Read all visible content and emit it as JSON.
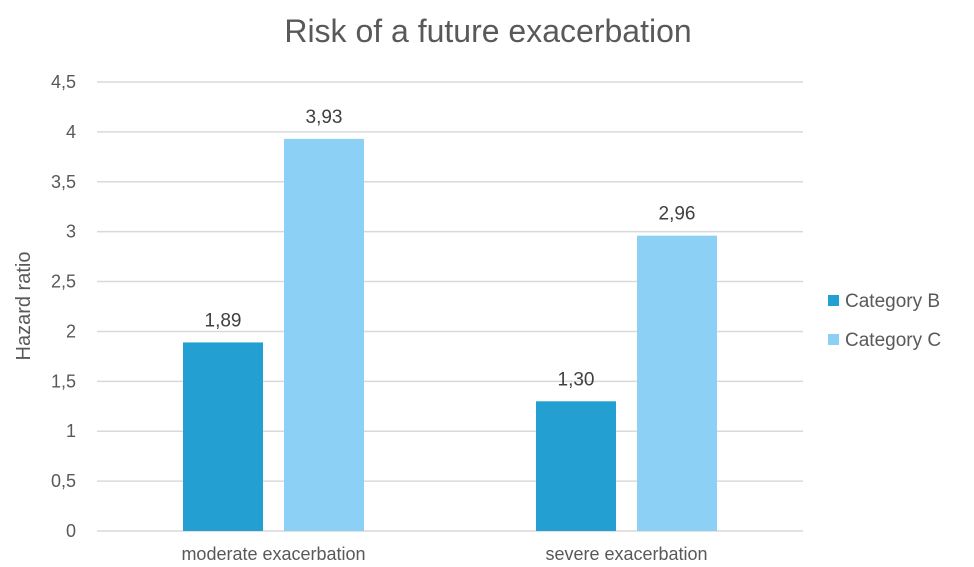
{
  "chart_data": {
    "type": "bar",
    "title": "Risk of a future exacerbation",
    "ylabel": "Hazard ratio",
    "xlabel": "",
    "categories": [
      "moderate exacerbation",
      "severe exacerbation"
    ],
    "series": [
      {
        "name": "Category B",
        "values": [
          1.89,
          1.3
        ],
        "labels": [
          "1,89",
          "1,30"
        ],
        "color": "#239fd1"
      },
      {
        "name": "Category C",
        "values": [
          3.93,
          2.96
        ],
        "labels": [
          "3,93",
          "2,96"
        ],
        "color": "#8dd0f5"
      }
    ],
    "ylim": [
      0,
      4.5
    ],
    "yticks": [
      0,
      0.5,
      1,
      1.5,
      2,
      2.5,
      3,
      3.5,
      4,
      4.5
    ],
    "ytick_labels": [
      "0",
      "0,5",
      "1",
      "1,5",
      "2",
      "2,5",
      "3",
      "3,5",
      "4",
      "4,5"
    ],
    "grid": true,
    "legend": "right"
  }
}
